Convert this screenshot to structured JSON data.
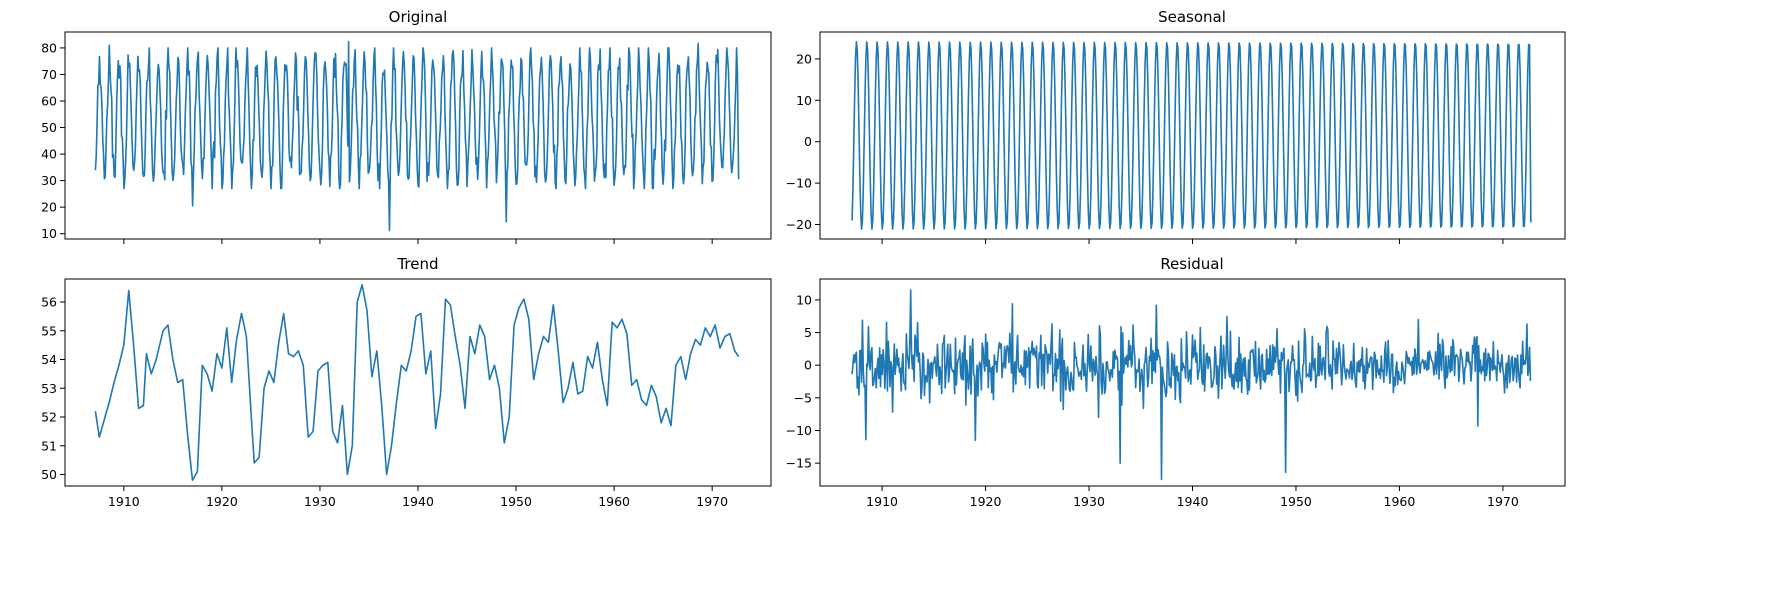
{
  "colors": {
    "series": "#1f77b4"
  },
  "chart_data": [
    {
      "type": "line",
      "title": "Original",
      "xlabel": "",
      "ylabel": "",
      "xlim": [
        1904,
        1976
      ],
      "ylim": [
        8,
        86
      ],
      "xticks": [
        "1910",
        "1920",
        "1930",
        "1940",
        "1950",
        "1960",
        "1970"
      ],
      "show_xtick_labels": false,
      "yticks": [
        "10",
        "20",
        "30",
        "40",
        "50",
        "60",
        "70",
        "80"
      ],
      "x_start": 1907.1,
      "x_step": 0.0833,
      "n": 788,
      "pattern": "seasonal_noisy",
      "base": 53.5,
      "amplitude": 22.5,
      "noise": 3.5,
      "min_points": [
        [
          1937.1,
          11.2
        ],
        [
          1949.0,
          14.5
        ],
        [
          1917.0,
          20.5
        ]
      ],
      "max_points": [
        [
          1932.9,
          82.4
        ],
        [
          1908.5,
          81.0
        ],
        [
          1968.6,
          81.7
        ]
      ],
      "x_end": 1972.7,
      "y_end": 30.5
    },
    {
      "type": "line",
      "title": "Seasonal",
      "xlabel": "",
      "ylabel": "",
      "xlim": [
        1904,
        1976
      ],
      "ylim": [
        -23.5,
        26.5
      ],
      "xticks": [
        "1910",
        "1920",
        "1930",
        "1940",
        "1950",
        "1960",
        "1970"
      ],
      "show_xtick_labels": false,
      "yticks": [
        "-20",
        "-10",
        "0",
        "10",
        "20"
      ],
      "x_start": 1907.1,
      "x_step": 0.0833,
      "n": 788,
      "pattern": "seasonal_pure",
      "amplitude_max": 24.2,
      "amplitude_min": -21.2,
      "x_end": 1972.7,
      "y_end": -19.5
    },
    {
      "type": "line",
      "title": "Trend",
      "xlabel": "",
      "ylabel": "",
      "xlim": [
        1904,
        1976
      ],
      "ylim": [
        49.6,
        56.8
      ],
      "xticks": [
        "1910",
        "1920",
        "1930",
        "1940",
        "1950",
        "1960",
        "1970"
      ],
      "show_xtick_labels": true,
      "yticks": [
        "50",
        "51",
        "52",
        "53",
        "54",
        "55",
        "56"
      ],
      "points": [
        [
          1907.1,
          52.2
        ],
        [
          1907.5,
          51.3
        ],
        [
          1908.0,
          51.9
        ],
        [
          1908.5,
          52.5
        ],
        [
          1909.0,
          53.2
        ],
        [
          1909.5,
          53.8
        ],
        [
          1910.0,
          54.5
        ],
        [
          1910.5,
          56.4
        ],
        [
          1911.0,
          54.5
        ],
        [
          1911.5,
          52.3
        ],
        [
          1912.0,
          52.4
        ],
        [
          1912.3,
          54.2
        ],
        [
          1912.8,
          53.5
        ],
        [
          1913.3,
          54.0
        ],
        [
          1914.0,
          55.0
        ],
        [
          1914.5,
          55.2
        ],
        [
          1915.0,
          54.0
        ],
        [
          1915.5,
          53.2
        ],
        [
          1916.0,
          53.3
        ],
        [
          1916.5,
          51.4
        ],
        [
          1917.0,
          49.8
        ],
        [
          1917.5,
          50.1
        ],
        [
          1918.0,
          53.8
        ],
        [
          1918.5,
          53.5
        ],
        [
          1919.0,
          52.9
        ],
        [
          1919.5,
          54.2
        ],
        [
          1920.0,
          53.7
        ],
        [
          1920.5,
          55.1
        ],
        [
          1921.0,
          53.2
        ],
        [
          1921.5,
          54.7
        ],
        [
          1922.0,
          55.6
        ],
        [
          1922.5,
          54.8
        ],
        [
          1923.0,
          52.0
        ],
        [
          1923.3,
          50.4
        ],
        [
          1923.8,
          50.6
        ],
        [
          1924.3,
          53.0
        ],
        [
          1924.8,
          53.6
        ],
        [
          1925.3,
          53.2
        ],
        [
          1925.8,
          54.6
        ],
        [
          1926.3,
          55.6
        ],
        [
          1926.8,
          54.2
        ],
        [
          1927.3,
          54.1
        ],
        [
          1927.8,
          54.3
        ],
        [
          1928.3,
          53.8
        ],
        [
          1928.8,
          51.3
        ],
        [
          1929.3,
          51.5
        ],
        [
          1929.8,
          53.6
        ],
        [
          1930.3,
          53.8
        ],
        [
          1930.8,
          53.9
        ],
        [
          1931.3,
          51.5
        ],
        [
          1931.8,
          51.1
        ],
        [
          1932.3,
          52.4
        ],
        [
          1932.8,
          50.0
        ],
        [
          1933.3,
          51.0
        ],
        [
          1933.8,
          56.0
        ],
        [
          1934.3,
          56.6
        ],
        [
          1934.8,
          55.7
        ],
        [
          1935.3,
          53.4
        ],
        [
          1935.8,
          54.3
        ],
        [
          1936.3,
          52.4
        ],
        [
          1936.8,
          50.0
        ],
        [
          1937.3,
          51.0
        ],
        [
          1937.8,
          52.5
        ],
        [
          1938.3,
          53.8
        ],
        [
          1938.8,
          53.6
        ],
        [
          1939.3,
          54.3
        ],
        [
          1939.8,
          55.5
        ],
        [
          1940.3,
          55.6
        ],
        [
          1940.8,
          53.5
        ],
        [
          1941.3,
          54.3
        ],
        [
          1941.8,
          51.6
        ],
        [
          1942.3,
          52.8
        ],
        [
          1942.8,
          56.1
        ],
        [
          1943.3,
          55.9
        ],
        [
          1943.8,
          54.8
        ],
        [
          1944.3,
          53.8
        ],
        [
          1944.8,
          52.3
        ],
        [
          1945.3,
          54.8
        ],
        [
          1945.8,
          54.2
        ],
        [
          1946.3,
          55.2
        ],
        [
          1946.8,
          54.8
        ],
        [
          1947.3,
          53.3
        ],
        [
          1947.8,
          53.8
        ],
        [
          1948.3,
          53.0
        ],
        [
          1948.8,
          51.1
        ],
        [
          1949.3,
          52.0
        ],
        [
          1949.8,
          55.2
        ],
        [
          1950.3,
          55.8
        ],
        [
          1950.8,
          56.1
        ],
        [
          1951.3,
          55.4
        ],
        [
          1951.8,
          53.3
        ],
        [
          1952.3,
          54.2
        ],
        [
          1952.8,
          54.8
        ],
        [
          1953.3,
          54.6
        ],
        [
          1953.8,
          55.9
        ],
        [
          1954.3,
          54.3
        ],
        [
          1954.8,
          52.5
        ],
        [
          1955.3,
          53.0
        ],
        [
          1955.8,
          53.9
        ],
        [
          1956.3,
          52.8
        ],
        [
          1956.8,
          52.9
        ],
        [
          1957.3,
          54.1
        ],
        [
          1957.8,
          53.7
        ],
        [
          1958.3,
          54.6
        ],
        [
          1958.8,
          53.3
        ],
        [
          1959.3,
          52.4
        ],
        [
          1959.8,
          55.3
        ],
        [
          1960.3,
          55.1
        ],
        [
          1960.8,
          55.4
        ],
        [
          1961.3,
          54.9
        ],
        [
          1961.8,
          53.1
        ],
        [
          1962.3,
          53.3
        ],
        [
          1962.8,
          52.6
        ],
        [
          1963.3,
          52.4
        ],
        [
          1963.8,
          53.1
        ],
        [
          1964.3,
          52.7
        ],
        [
          1964.8,
          51.8
        ],
        [
          1965.3,
          52.3
        ],
        [
          1965.8,
          51.7
        ],
        [
          1966.3,
          53.8
        ],
        [
          1966.8,
          54.1
        ],
        [
          1967.3,
          53.3
        ],
        [
          1967.8,
          54.2
        ],
        [
          1968.3,
          54.7
        ],
        [
          1968.8,
          54.5
        ],
        [
          1969.3,
          55.1
        ],
        [
          1969.8,
          54.8
        ],
        [
          1970.3,
          55.2
        ],
        [
          1970.8,
          54.4
        ],
        [
          1971.3,
          54.8
        ],
        [
          1971.8,
          54.9
        ],
        [
          1972.3,
          54.3
        ],
        [
          1972.7,
          54.1
        ]
      ]
    },
    {
      "type": "line",
      "title": "Residual",
      "xlabel": "",
      "ylabel": "",
      "xlim": [
        1904,
        1976
      ],
      "ylim": [
        -18.5,
        13.2
      ],
      "xticks": [
        "1910",
        "1920",
        "1930",
        "1940",
        "1950",
        "1960",
        "1970"
      ],
      "show_xtick_labels": true,
      "yticks": [
        "-15",
        "-10",
        "-5",
        "0",
        "5",
        "10"
      ],
      "x_start": 1907.1,
      "x_step": 0.0833,
      "n": 788,
      "pattern": "noise",
      "std": 2.8,
      "std_late": 1.9,
      "spikes": [
        [
          1908.4,
          -11.4
        ],
        [
          1912.8,
          11.5
        ],
        [
          1919.0,
          -11.5
        ],
        [
          1933.0,
          -15.0
        ],
        [
          1937.0,
          -17.5
        ],
        [
          1949.0,
          -16.4
        ],
        [
          1936.5,
          9.2
        ],
        [
          1922.6,
          9.4
        ],
        [
          1961.8,
          7.0
        ],
        [
          1967.6,
          -9.3
        ],
        [
          1972.3,
          6.3
        ]
      ]
    }
  ]
}
